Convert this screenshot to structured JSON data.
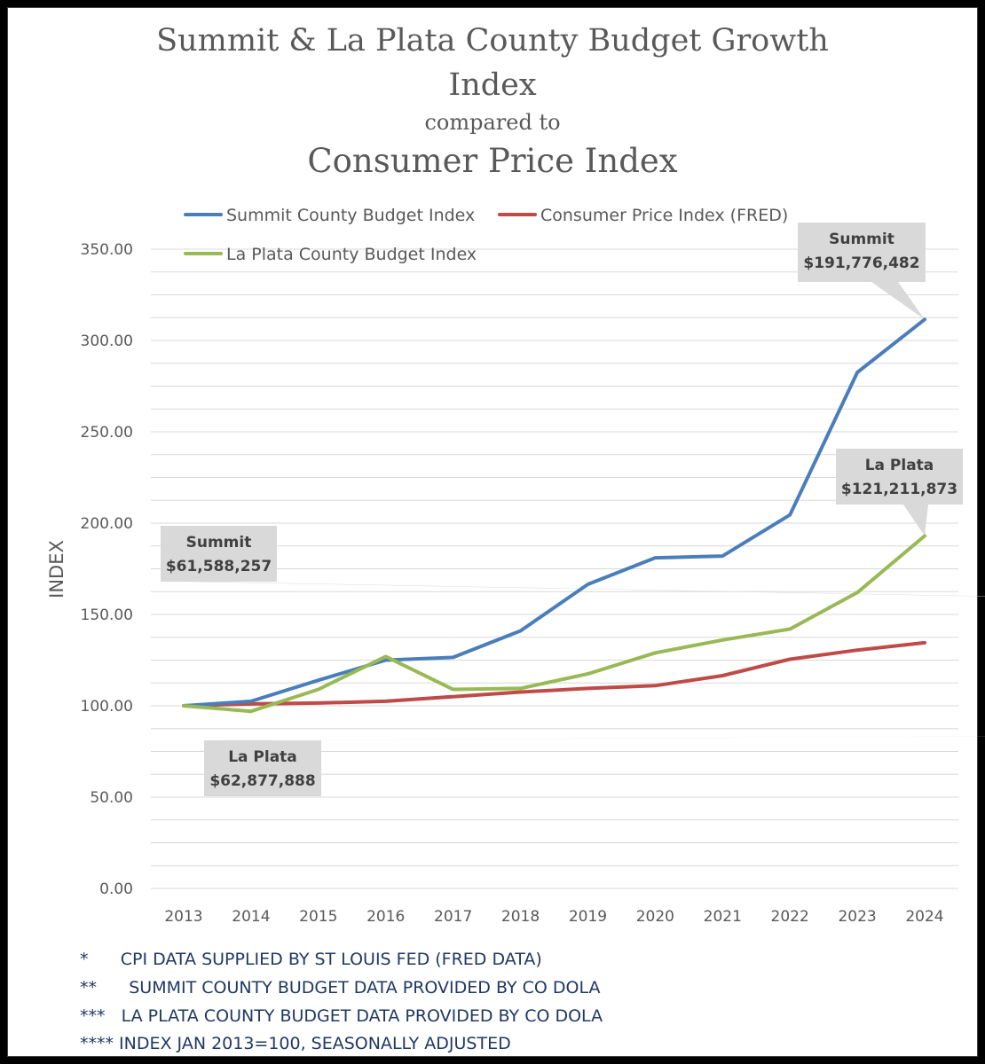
{
  "chart_data": {
    "type": "line",
    "title_line1": "Summit & La Plata County Budget Growth",
    "title_line2": "Index",
    "subtitle": "compared to",
    "title_line3": "Consumer Price Index",
    "ylabel": "INDEX",
    "ylim": [
      0,
      350
    ],
    "yticks": [
      "0.00",
      "50.00",
      "100.00",
      "150.00",
      "200.00",
      "250.00",
      "300.00",
      "350.00"
    ],
    "categories": [
      "2013",
      "2014",
      "2015",
      "2016",
      "2017",
      "2018",
      "2019",
      "2020",
      "2021",
      "2022",
      "2023",
      "2024"
    ],
    "grid": true,
    "legend_position": "top",
    "series": [
      {
        "name": "Summit County Budget Index",
        "color": "#4a7ebb",
        "values": [
          100,
          102.5,
          114,
          125,
          126.5,
          141,
          166.5,
          181,
          182,
          204.5,
          282.5,
          311.5
        ]
      },
      {
        "name": "Consumer Price Index (FRED)",
        "color": "#be4b48",
        "values": [
          100,
          101,
          101.5,
          102.5,
          105,
          107.5,
          109.5,
          111,
          116.5,
          125.5,
          130.5,
          134.5
        ]
      },
      {
        "name": "La Plata County Budget Index",
        "color": "#98b954",
        "values": [
          100,
          97,
          109,
          127,
          109,
          109.5,
          117.5,
          129,
          136,
          142,
          162,
          193
        ]
      }
    ],
    "annotations": [
      {
        "line1": "Summit",
        "line2": "$61,588,257"
      },
      {
        "line1": "La Plata",
        "line2": "$62,877,888"
      },
      {
        "line1": "Summit",
        "line2": "$191,776,482"
      },
      {
        "line1": "La Plata",
        "line2": "$121,211,873"
      }
    ]
  },
  "footnotes": [
    "*      CPI DATA SUPPLIED BY ST LOUIS FED (FRED DATA)",
    "**      SUMMIT COUNTY BUDGET DATA PROVIDED BY CO DOLA",
    "***   LA PLATA COUNTY BUDGET DATA PROVIDED BY CO DOLA",
    "**** INDEX JAN 2013=100, SEASONALLY ADJUSTED"
  ],
  "colors": {
    "grid": "#d9d9d9",
    "text": "#595959",
    "callout_bg": "#d9d9d9",
    "footnote": "#1f3864"
  }
}
